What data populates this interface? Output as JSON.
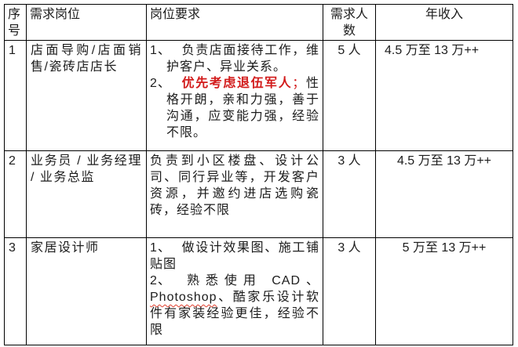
{
  "colors": {
    "red_highlight": "#d21b1b",
    "spellcheck_squiggle": "#e03e2d",
    "table_border": "#000000",
    "text": "#1c1c1c",
    "background": "#ffffff"
  },
  "table": {
    "headers": [
      {
        "label": "序号"
      },
      {
        "label": "需求岗位"
      },
      {
        "label": "岗位要求"
      },
      {
        "label": "需求人数"
      },
      {
        "label": "年收入"
      }
    ],
    "rows": [
      {
        "no": "1",
        "position": "店面导购/店面销售/瓷砖店店长",
        "requirements": [
          {
            "marker": "1、",
            "hanging": true,
            "segments": [
              {
                "t": "负责店面接待工作，维护客户、异业关系。"
              }
            ]
          },
          {
            "marker": "2、",
            "hanging": true,
            "segments": [
              {
                "t": "优先考虑退伍军人",
                "s": "red-bold"
              },
              {
                "t": "；",
                "s": "red"
              },
              {
                "t": "性格开朗，亲和力强，善于沟通，应变能力强，经验不限。"
              }
            ]
          }
        ],
        "headcount": "5 人",
        "salary": "4.5 万至 13 万++",
        "salary_align": "left"
      },
      {
        "no": "2",
        "position": "业务员 / 业务经理 / 业务总监",
        "requirements": [
          {
            "segments": [
              {
                "t": "负责到小区楼盘、设计公司、同行异业等，开发客户资源，并邀约进店选购瓷砖，经验不限"
              }
            ]
          }
        ],
        "headcount": "3 人",
        "salary": "4.5 万至 13 万++",
        "salary_align": "center"
      },
      {
        "no": "3",
        "position": "家居设计师",
        "requirements": [
          {
            "marker": "1、",
            "segments": [
              {
                "t": "做设计效果图、施工铺贴图"
              }
            ]
          },
          {
            "marker": "2、",
            "segments": [
              {
                "t": "熟悉使用 CAD、"
              },
              {
                "t": "Photoshop",
                "s": "wavy"
              },
              {
                "t": "、酷家乐设计软件有家装经验更佳，经验不限"
              }
            ]
          }
        ],
        "headcount": "3 人",
        "salary": "5 万至 13 万++",
        "salary_align": "center"
      }
    ]
  }
}
